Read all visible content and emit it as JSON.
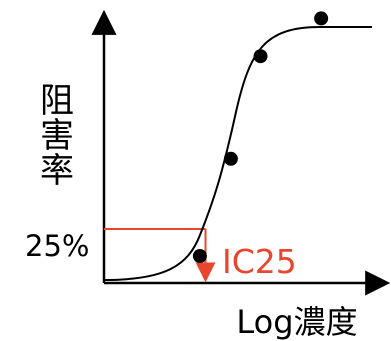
{
  "chart_data": {
    "type": "line",
    "title": "",
    "xlabel": "Log濃度",
    "ylabel": "阻害率",
    "x_scale": "log",
    "grid": false,
    "legend": "none",
    "series": [
      {
        "curve": "sigmoid",
        "points": [
          {
            "x": 0.34,
            "y": 0.1
          },
          {
            "x": 0.45,
            "y": 0.46
          },
          {
            "x": 0.555,
            "y": 0.84
          },
          {
            "x": 0.77,
            "y": 0.98
          }
        ]
      }
    ],
    "reference": {
      "y_label": "25%",
      "annotation": "IC25",
      "x": 0.36,
      "y": 0.2
    },
    "colors": {
      "axis": "#000000",
      "curve": "#000000",
      "marker": "#000000",
      "reference": "#e8462d"
    }
  }
}
